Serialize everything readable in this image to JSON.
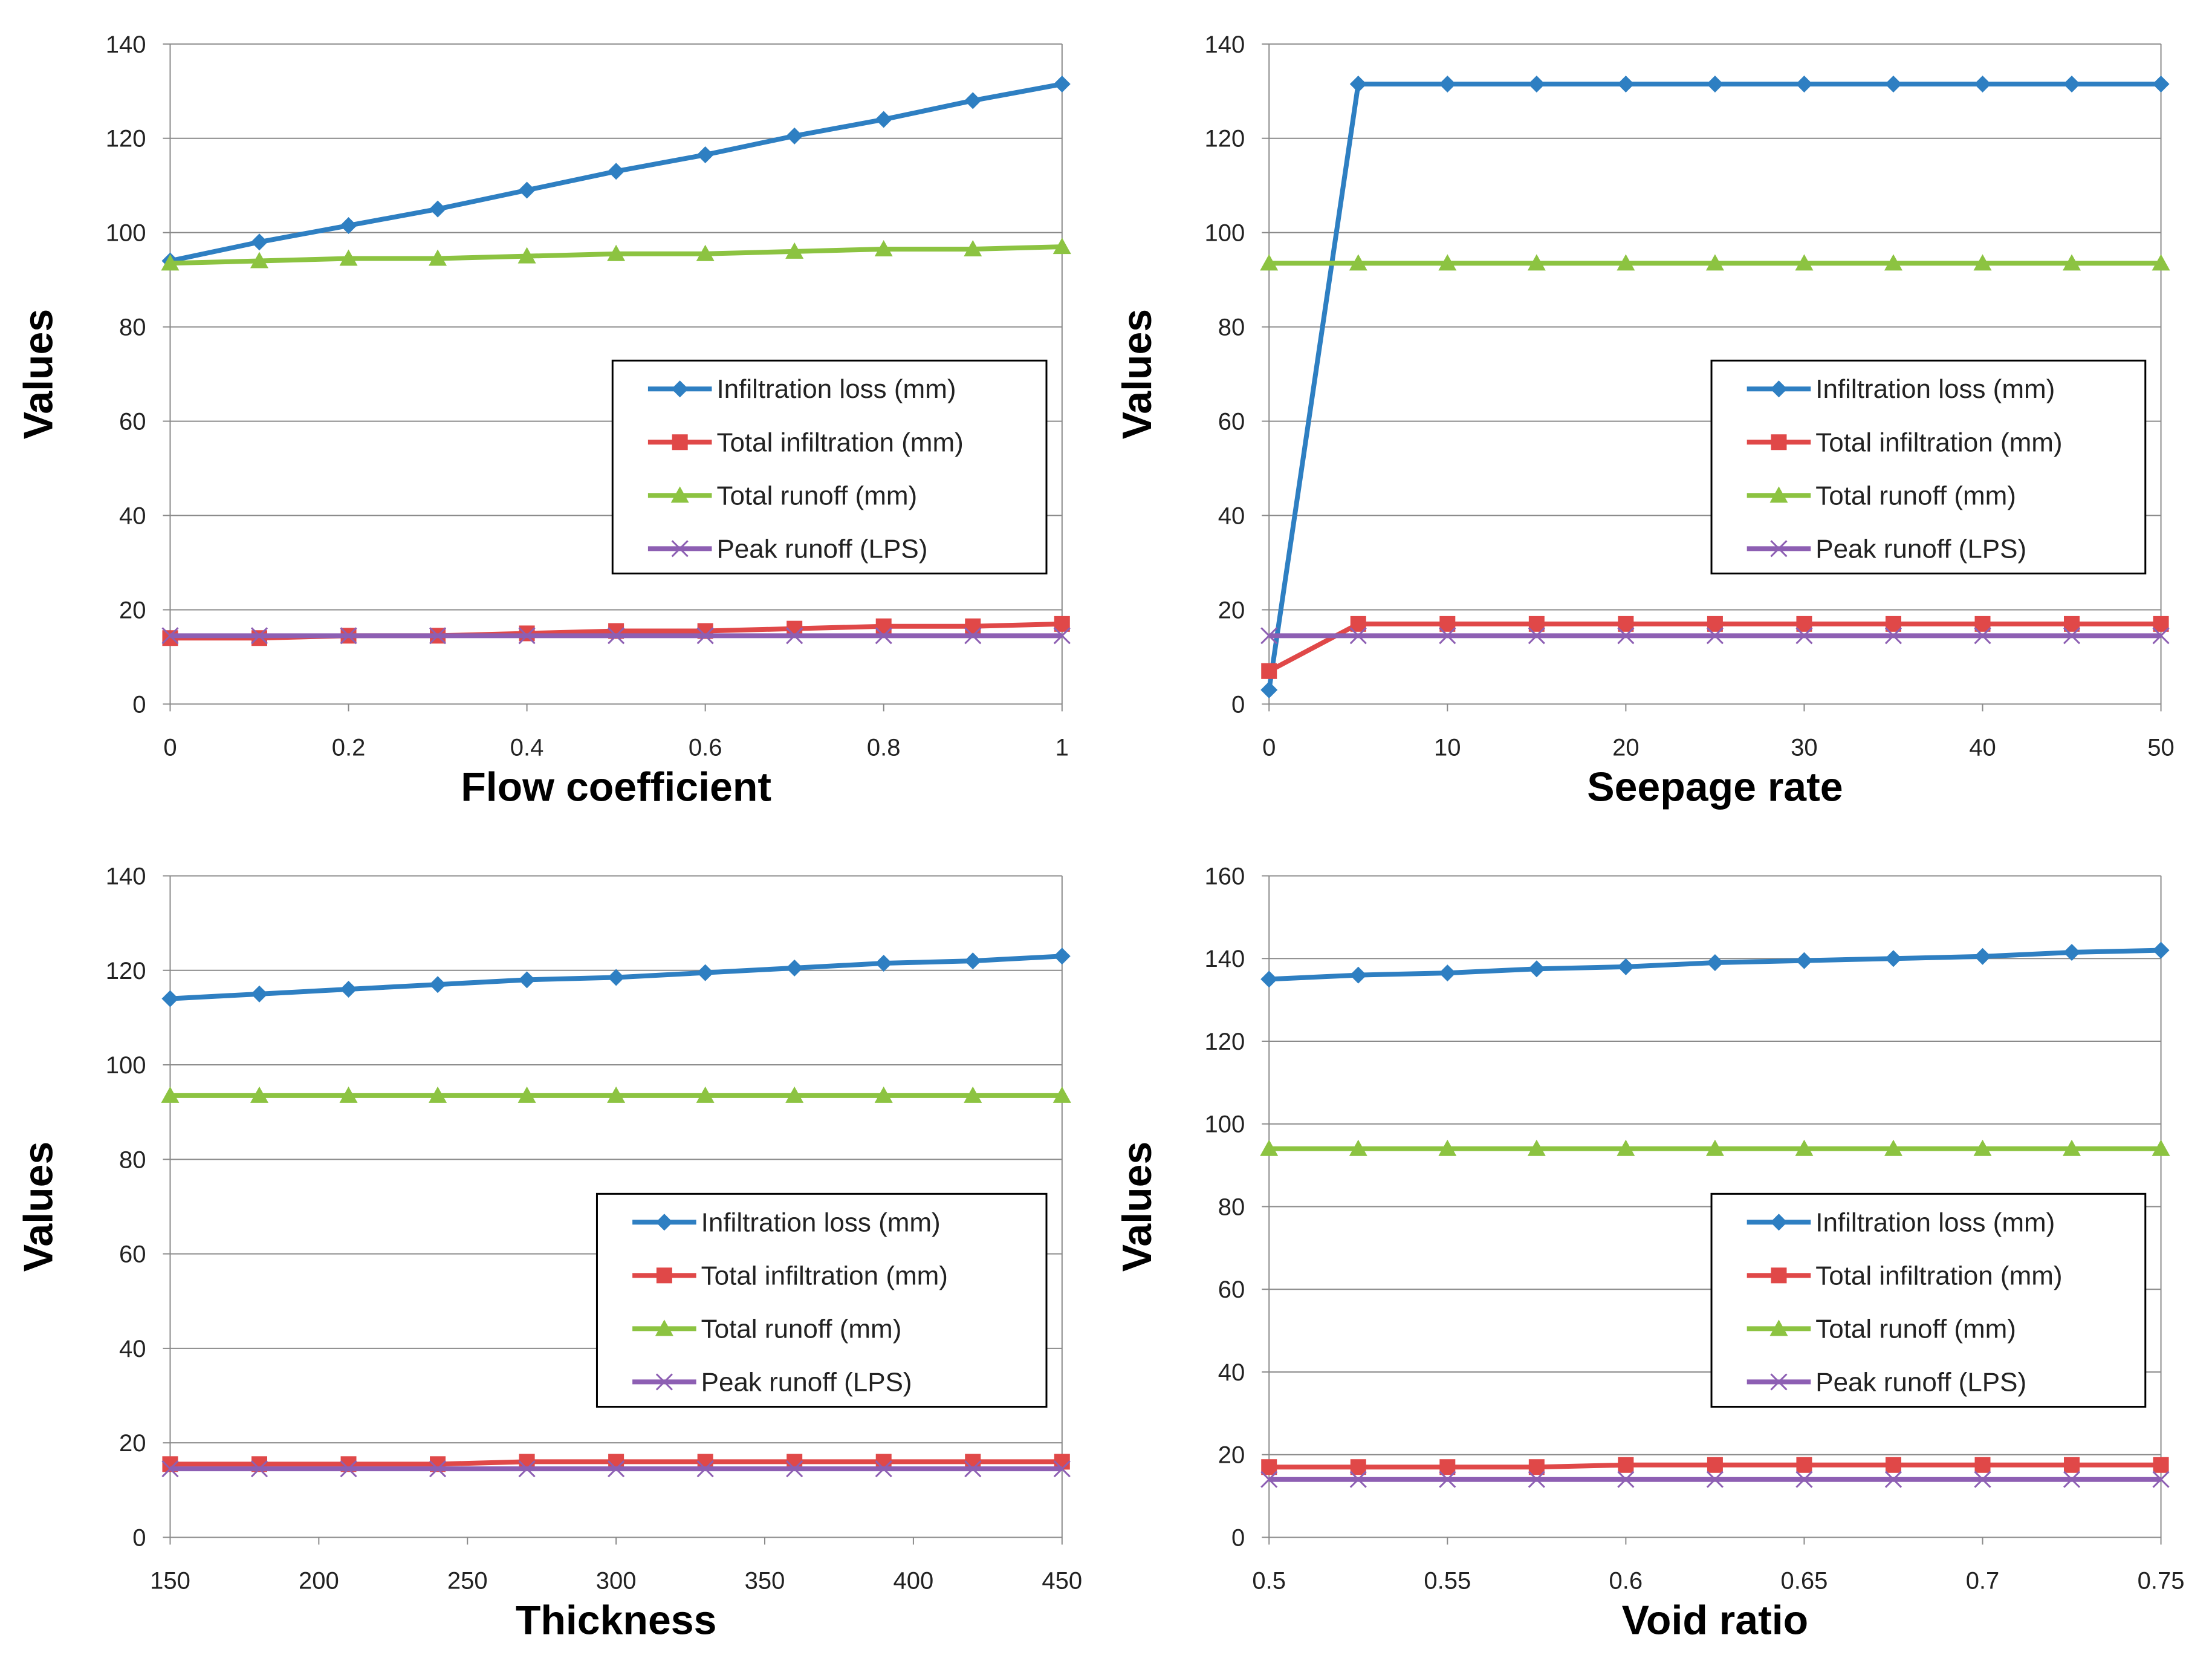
{
  "colors": {
    "series": [
      "#2e7fc2",
      "#e04848",
      "#8cc341",
      "#8d5fb3"
    ],
    "grid": "#8a8a8a",
    "axis": "#8a8a8a",
    "legend_border": "#000000"
  },
  "chart_data": [
    {
      "type": "line",
      "title": "",
      "xlabel": "Flow coefficient",
      "ylabel": "Values",
      "xlim": [
        0,
        1
      ],
      "ylim": [
        0,
        140
      ],
      "xticks": [
        0,
        0.2,
        0.4,
        0.6,
        0.8,
        1
      ],
      "yticks": [
        0,
        20,
        40,
        60,
        80,
        100,
        120,
        140
      ],
      "grid": true,
      "legend_position": "center-right",
      "x": [
        0,
        0.1,
        0.2,
        0.3,
        0.4,
        0.5,
        0.6,
        0.7,
        0.8,
        0.9,
        1.0
      ],
      "series": [
        {
          "name": "Infiltration loss (mm)",
          "marker": "diamond",
          "values": [
            94,
            98,
            101.5,
            105,
            109,
            113,
            116.5,
            120.5,
            124,
            128,
            131.5
          ]
        },
        {
          "name": "Total infiltration (mm)",
          "marker": "square",
          "values": [
            14,
            14,
            14.5,
            14.5,
            15,
            15.5,
            15.5,
            16,
            16.5,
            16.5,
            17
          ]
        },
        {
          "name": "Total runoff (mm)",
          "marker": "triangle",
          "values": [
            93.5,
            94,
            94.5,
            94.5,
            95,
            95.5,
            95.5,
            96,
            96.5,
            96.5,
            97
          ]
        },
        {
          "name": "Peak runoff (LPS)",
          "marker": "x",
          "values": [
            14.5,
            14.5,
            14.5,
            14.5,
            14.5,
            14.5,
            14.5,
            14.5,
            14.5,
            14.5,
            14.5
          ]
        }
      ]
    },
    {
      "type": "line",
      "title": "",
      "xlabel": "Seepage rate",
      "ylabel": "Values",
      "xlim": [
        0,
        50
      ],
      "ylim": [
        0,
        140
      ],
      "xticks": [
        0,
        10,
        20,
        30,
        40,
        50
      ],
      "yticks": [
        0,
        20,
        40,
        60,
        80,
        100,
        120,
        140
      ],
      "grid": true,
      "legend_position": "center-right",
      "x": [
        0,
        5,
        10,
        15,
        20,
        25,
        30,
        35,
        40,
        45,
        50
      ],
      "series": [
        {
          "name": "Infiltration loss (mm)",
          "marker": "diamond",
          "values": [
            3,
            131.5,
            131.5,
            131.5,
            131.5,
            131.5,
            131.5,
            131.5,
            131.5,
            131.5,
            131.5
          ]
        },
        {
          "name": "Total infiltration (mm)",
          "marker": "square",
          "values": [
            7,
            17,
            17,
            17,
            17,
            17,
            17,
            17,
            17,
            17,
            17
          ]
        },
        {
          "name": "Total runoff (mm)",
          "marker": "triangle",
          "values": [
            93.5,
            93.5,
            93.5,
            93.5,
            93.5,
            93.5,
            93.5,
            93.5,
            93.5,
            93.5,
            93.5
          ]
        },
        {
          "name": "Peak runoff (LPS)",
          "marker": "x",
          "values": [
            14.5,
            14.5,
            14.5,
            14.5,
            14.5,
            14.5,
            14.5,
            14.5,
            14.5,
            14.5,
            14.5
          ]
        }
      ]
    },
    {
      "type": "line",
      "title": "",
      "xlabel": "Thickness",
      "ylabel": "Values",
      "xlim": [
        150,
        450
      ],
      "ylim": [
        0,
        140
      ],
      "xticks": [
        150,
        200,
        250,
        300,
        350,
        400,
        450
      ],
      "yticks": [
        0,
        20,
        40,
        60,
        80,
        100,
        120,
        140
      ],
      "grid": true,
      "legend_position": "center-right",
      "x": [
        150,
        180,
        210,
        240,
        270,
        300,
        330,
        360,
        390,
        420,
        450
      ],
      "series": [
        {
          "name": "Infiltration loss (mm)",
          "marker": "diamond",
          "values": [
            114,
            115,
            116,
            117,
            118,
            118.5,
            119.5,
            120.5,
            121.5,
            122,
            123
          ]
        },
        {
          "name": "Total infiltration (mm)",
          "marker": "square",
          "values": [
            15.5,
            15.5,
            15.5,
            15.5,
            16,
            16,
            16,
            16,
            16,
            16,
            16
          ]
        },
        {
          "name": "Total runoff (mm)",
          "marker": "triangle",
          "values": [
            93.5,
            93.5,
            93.5,
            93.5,
            93.5,
            93.5,
            93.5,
            93.5,
            93.5,
            93.5,
            93.5
          ]
        },
        {
          "name": "Peak runoff (LPS)",
          "marker": "x",
          "values": [
            14.5,
            14.5,
            14.5,
            14.5,
            14.5,
            14.5,
            14.5,
            14.5,
            14.5,
            14.5,
            14.5
          ]
        }
      ]
    },
    {
      "type": "line",
      "title": "",
      "xlabel": "Void ratio",
      "ylabel": "Values",
      "xlim": [
        0.5,
        0.75
      ],
      "ylim": [
        0,
        160
      ],
      "xticks": [
        0.5,
        0.55,
        0.6,
        0.65,
        0.7,
        0.75
      ],
      "yticks": [
        0,
        20,
        40,
        60,
        80,
        100,
        120,
        140,
        160
      ],
      "grid": true,
      "legend_position": "center-right",
      "x": [
        0.5,
        0.525,
        0.55,
        0.575,
        0.6,
        0.625,
        0.65,
        0.675,
        0.7,
        0.725,
        0.75
      ],
      "series": [
        {
          "name": "Infiltration loss (mm)",
          "marker": "diamond",
          "values": [
            135,
            136,
            136.5,
            137.5,
            138,
            139,
            139.5,
            140,
            140.5,
            141.5,
            142
          ]
        },
        {
          "name": "Total infiltration (mm)",
          "marker": "square",
          "values": [
            17,
            17,
            17,
            17,
            17.5,
            17.5,
            17.5,
            17.5,
            17.5,
            17.5,
            17.5
          ]
        },
        {
          "name": "Total runoff (mm)",
          "marker": "triangle",
          "values": [
            94,
            94,
            94,
            94,
            94,
            94,
            94,
            94,
            94,
            94,
            94
          ]
        },
        {
          "name": "Peak runoff (LPS)",
          "marker": "x",
          "values": [
            14,
            14,
            14,
            14,
            14,
            14,
            14,
            14,
            14,
            14,
            14
          ]
        }
      ]
    }
  ]
}
